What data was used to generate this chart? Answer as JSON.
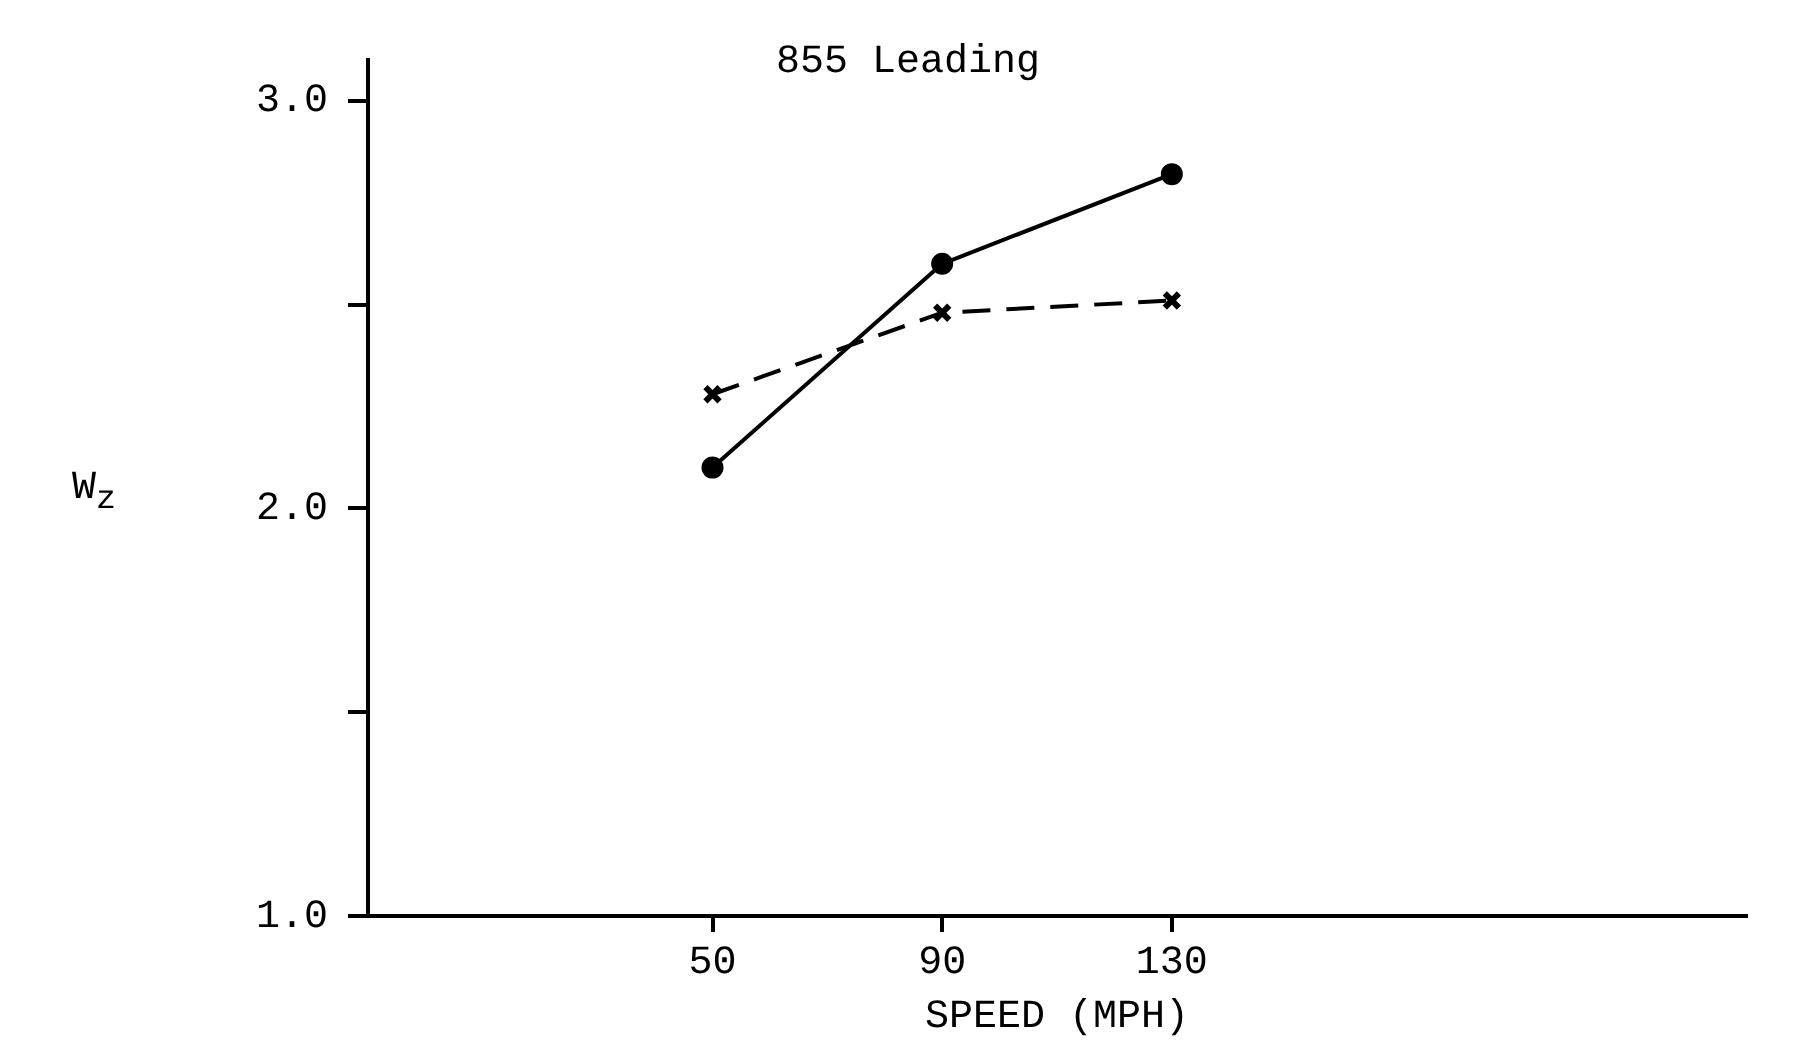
{
  "chart_data": {
    "type": "line",
    "title": "855 Leading",
    "xlabel": "SPEED (MPH)",
    "ylabel": "W$_{z}$",
    "x": [
      50,
      90,
      130
    ],
    "series": [
      {
        "color": "#000000",
        "values": [
          2.1,
          2.6,
          2.82
        ],
        "marker": "circle",
        "line_style": "solid"
      },
      {
        "color": "#000000",
        "values": [
          2.28,
          2.48,
          2.51
        ],
        "marker": "cross",
        "line_style": "dashed"
      }
    ],
    "xlim": [
      -10,
      230
    ],
    "xticks": [
      50,
      90,
      130
    ],
    "ylim": [
      1,
      3.1
    ],
    "yticks": [
      {
        "value": 1,
        "label": "1.0"
      },
      {
        "value": 1.5,
        "label": null
      },
      {
        "value": 2,
        "label": "2.0"
      },
      {
        "value": 2.5,
        "label": null
      },
      {
        "value": 3,
        "label": "3.0"
      }
    ],
    "grid": false,
    "legend": false
  }
}
